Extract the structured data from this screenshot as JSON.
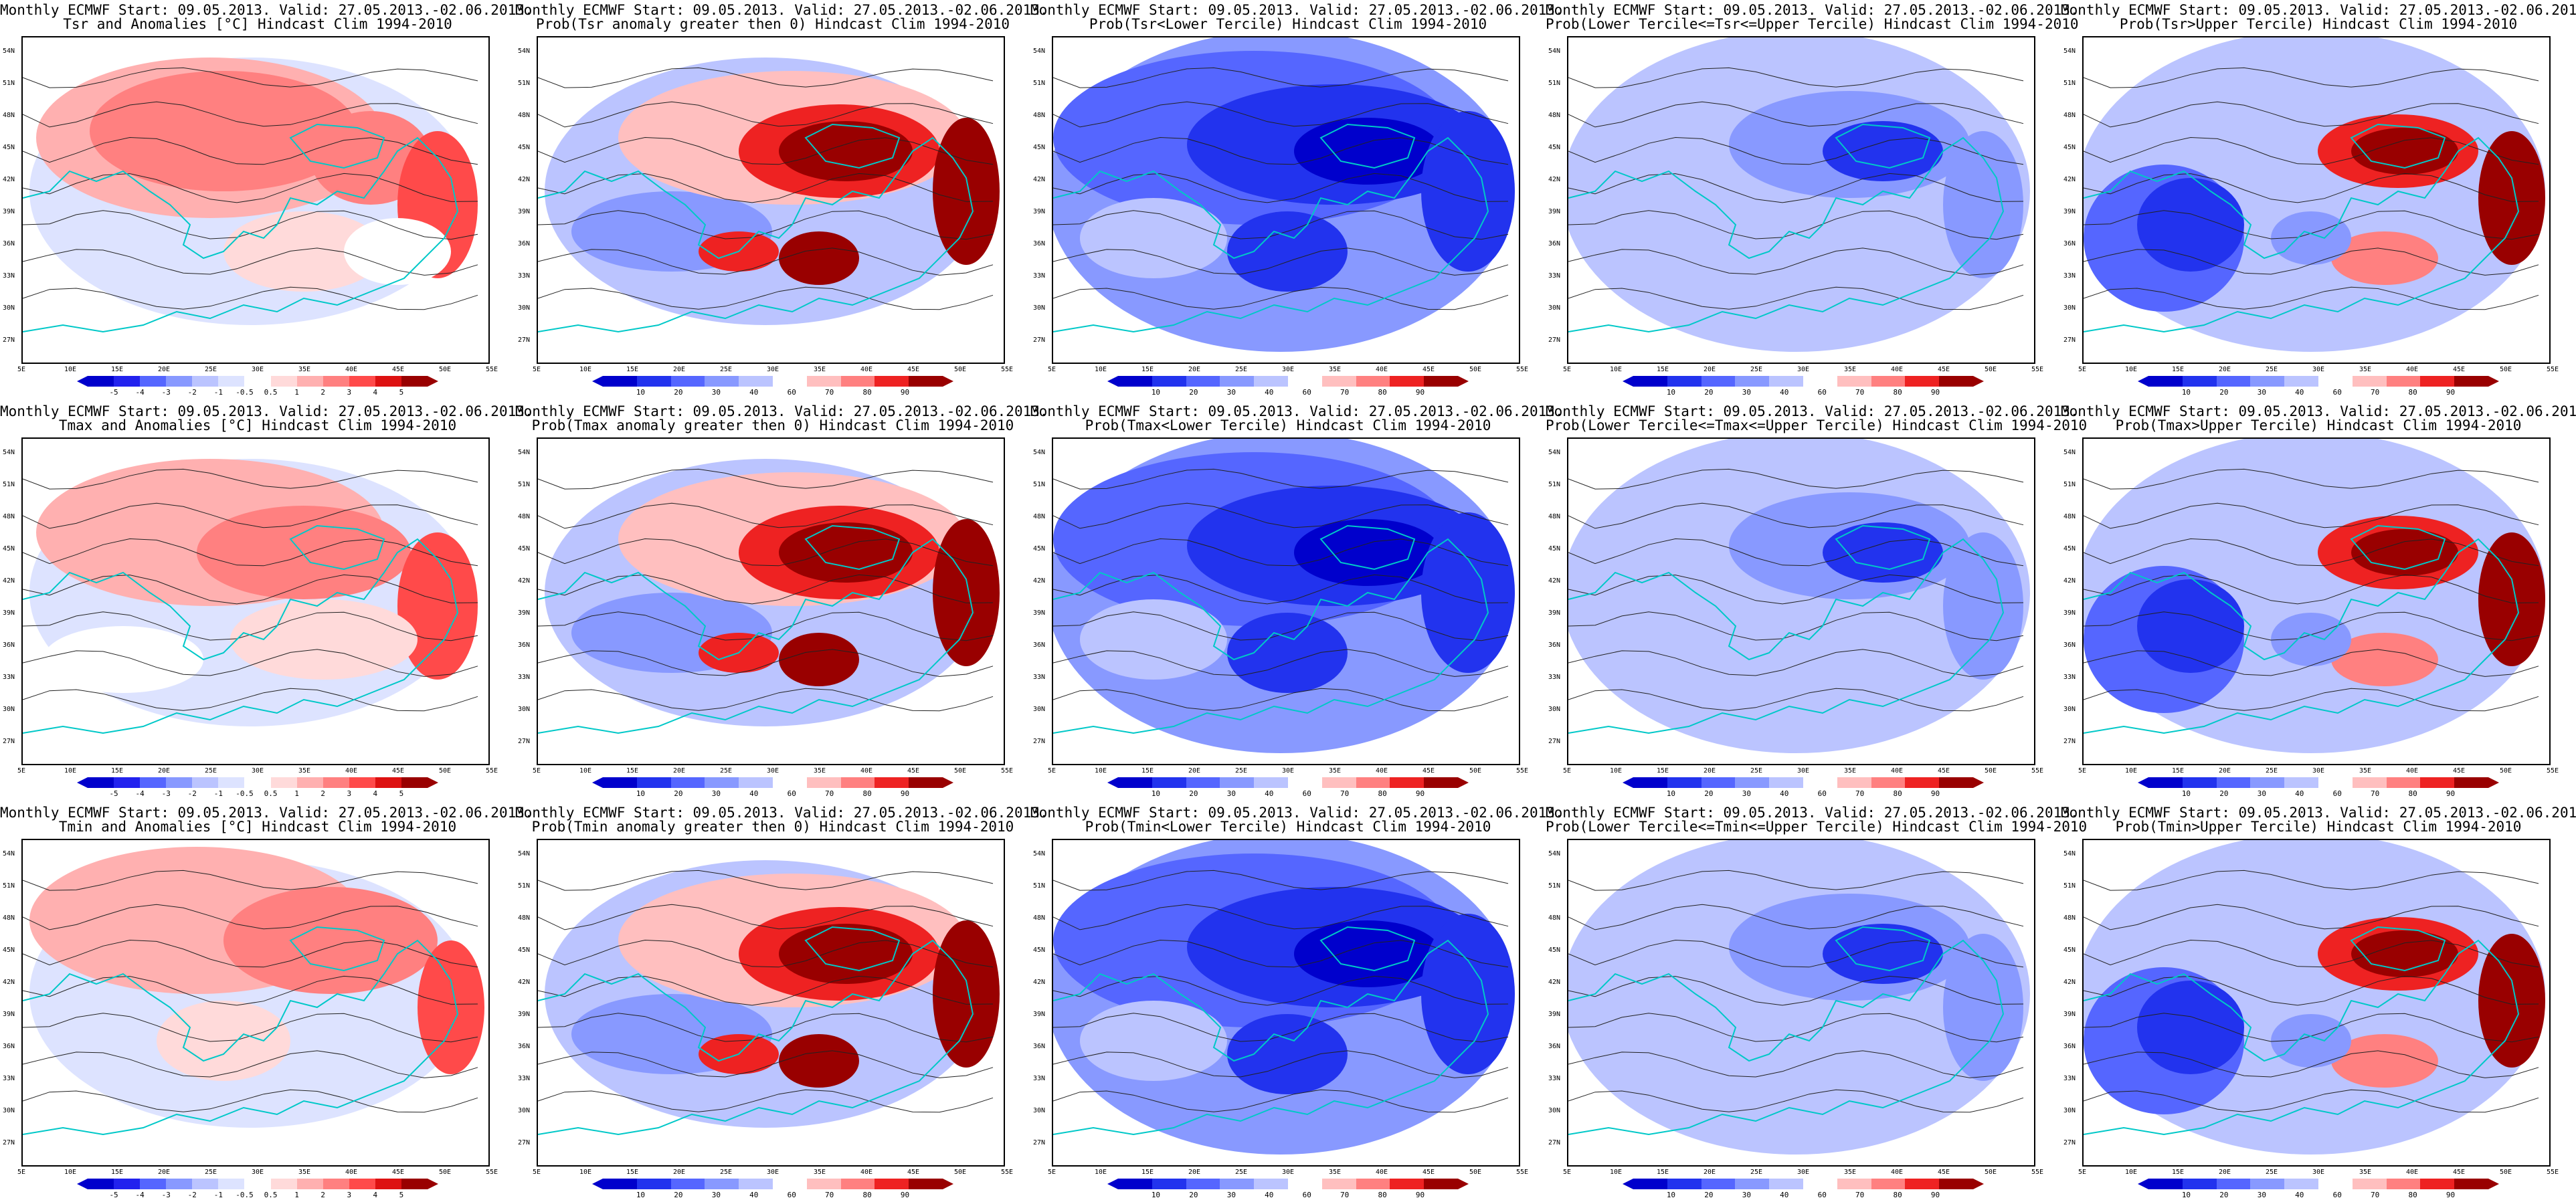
{
  "header_line": "Monthly ECMWF Start: 09.05.2013. Valid: 27.05.2013.-02.06.2013.",
  "lat_labels": [
    "54N",
    "51N",
    "48N",
    "45N",
    "42N",
    "39N",
    "36N",
    "33N",
    "30N",
    "27N"
  ],
  "lon_labels": [
    "5E",
    "10E",
    "15E",
    "20E",
    "25E",
    "30E",
    "35E",
    "40E",
    "45E",
    "50E",
    "55E"
  ],
  "colors": {
    "anom_scale": [
      "#0000cc",
      "#2222ee",
      "#5566ff",
      "#8899ff",
      "#bbc4ff",
      "#dde3ff",
      "#ffffff",
      "#ffdada",
      "#ffb0b0",
      "#ff8080",
      "#ff4a4a",
      "#dd1111",
      "#990000"
    ],
    "prob_scale": [
      "#0000cc",
      "#2233ee",
      "#5566ff",
      "#8899ff",
      "#bbc4ff",
      "#ffffff",
      "#ffbfbf",
      "#ff8080",
      "#ee2222",
      "#990000"
    ],
    "contour": "#222222",
    "coast": "#00c8c8"
  },
  "colorbars": {
    "anomaly": [
      "-5",
      "-4",
      "-3",
      "-2",
      "-1",
      "-0.5",
      "0.5",
      "1",
      "2",
      "3",
      "4",
      "5"
    ],
    "probability": [
      "10",
      "20",
      "30",
      "40",
      "60",
      "70",
      "80",
      "90"
    ]
  },
  "panels": [
    {
      "title": "Tsr and Anomalies [°C] Hindcast Clim 1994-2010",
      "kind": "anomaly",
      "pattern": "anom_a"
    },
    {
      "title": "Prob(Tsr anomaly greater then 0) Hindcast Clim 1994-2010",
      "kind": "probability",
      "pattern": "prob_pos"
    },
    {
      "title": "Prob(Tsr<Lower Tercile) Hindcast Clim 1994-2010",
      "kind": "probability",
      "pattern": "lower"
    },
    {
      "title": "Prob(Lower Tercile<=Tsr<=Upper Tercile) Hindcast Clim 1994-2010",
      "kind": "probability",
      "pattern": "middle"
    },
    {
      "title": "Prob(Tsr>Upper Tercile) Hindcast Clim 1994-2010",
      "kind": "probability",
      "pattern": "upper"
    },
    {
      "title": "Tmax and Anomalies [°C] Hindcast Clim 1994-2010",
      "kind": "anomaly",
      "pattern": "anom_b"
    },
    {
      "title": "Prob(Tmax anomaly greater then 0) Hindcast Clim 1994-2010",
      "kind": "probability",
      "pattern": "prob_pos"
    },
    {
      "title": "Prob(Tmax<Lower Tercile) Hindcast Clim 1994-2010",
      "kind": "probability",
      "pattern": "lower"
    },
    {
      "title": "Prob(Lower Tercile<=Tmax<=Upper Tercile) Hindcast Clim 1994-2010",
      "kind": "probability",
      "pattern": "middle"
    },
    {
      "title": "Prob(Tmax>Upper Tercile) Hindcast Clim 1994-2010",
      "kind": "probability",
      "pattern": "upper"
    },
    {
      "title": "Tmin and Anomalies [°C] Hindcast Clim 1994-2010",
      "kind": "anomaly",
      "pattern": "anom_c"
    },
    {
      "title": "Prob(Tmin anomaly greater then 0) Hindcast Clim 1994-2010",
      "kind": "probability",
      "pattern": "prob_pos"
    },
    {
      "title": "Prob(Tmin<Lower Tercile) Hindcast Clim 1994-2010",
      "kind": "probability",
      "pattern": "lower"
    },
    {
      "title": "Prob(Lower Tercile<=Tmin<=Upper Tercile) Hindcast Clim 1994-2010",
      "kind": "probability",
      "pattern": "middle"
    },
    {
      "title": "Prob(Tmin>Upper Tercile) Hindcast Clim 1994-2010",
      "kind": "probability",
      "pattern": "upper"
    }
  ]
}
